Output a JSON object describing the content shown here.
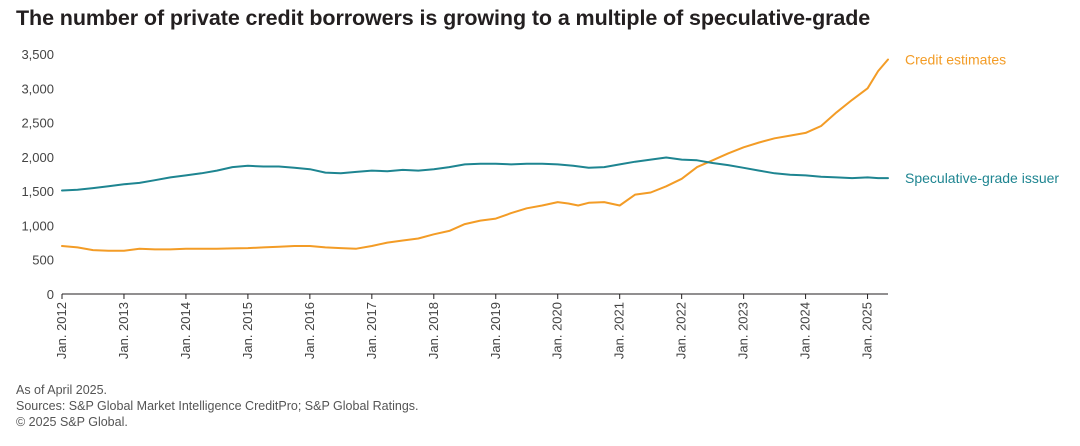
{
  "title": "The number of private credit borrowers is growing to a multiple of speculative-grade",
  "footer": {
    "note": "As of April 2025.",
    "sources": "Sources: S&P Global Market Intelligence CreditPro; S&P Global Ratings.",
    "copyright": "© 2025 S&P Global."
  },
  "colors": {
    "credit": "#f39c26",
    "spec": "#1e8591",
    "axis": "#231f20",
    "grid": "#cccccc"
  },
  "chart_data": {
    "type": "line",
    "ylim": [
      0,
      3500
    ],
    "yticks": [
      0,
      500,
      1000,
      1500,
      2000,
      2500,
      3000,
      3500
    ],
    "ytick_labels": [
      "0",
      "500",
      "1,000",
      "1,500",
      "2,000",
      "2,500",
      "3,000",
      "3,500"
    ],
    "xlim": [
      2012.0,
      2025.33
    ],
    "xticks": [
      2012,
      2013,
      2014,
      2015,
      2016,
      2017,
      2018,
      2019,
      2020,
      2021,
      2022,
      2023,
      2024,
      2025
    ],
    "xtick_labels": [
      "Jan. 2012",
      "Jan. 2013",
      "Jan. 2014",
      "Jan. 2015",
      "Jan. 2016",
      "Jan. 2017",
      "Jan. 2018",
      "Jan. 2019",
      "Jan. 2020",
      "Jan. 2021",
      "Jan. 2022",
      "Jan. 2023",
      "Jan. 2024",
      "Jan. 2025"
    ],
    "series": [
      {
        "name": "Credit estimates",
        "color": "#f39c26",
        "x": [
          2012.0,
          2012.25,
          2012.5,
          2012.75,
          2013.0,
          2013.25,
          2013.5,
          2013.75,
          2014.0,
          2014.25,
          2014.5,
          2014.75,
          2015.0,
          2015.25,
          2015.5,
          2015.75,
          2016.0,
          2016.25,
          2016.5,
          2016.75,
          2017.0,
          2017.25,
          2017.5,
          2017.75,
          2018.0,
          2018.25,
          2018.5,
          2018.75,
          2019.0,
          2019.25,
          2019.5,
          2019.75,
          2020.0,
          2020.17,
          2020.33,
          2020.5,
          2020.75,
          2021.0,
          2021.25,
          2021.5,
          2021.75,
          2022.0,
          2022.25,
          2022.5,
          2022.75,
          2023.0,
          2023.25,
          2023.5,
          2023.75,
          2024.0,
          2024.25,
          2024.5,
          2024.75,
          2025.0,
          2025.17,
          2025.33
        ],
        "y": [
          700,
          680,
          640,
          630,
          630,
          660,
          650,
          650,
          660,
          660,
          660,
          665,
          670,
          680,
          690,
          700,
          700,
          680,
          670,
          660,
          700,
          750,
          780,
          810,
          870,
          920,
          1020,
          1070,
          1100,
          1180,
          1250,
          1290,
          1340,
          1320,
          1290,
          1330,
          1340,
          1290,
          1450,
          1480,
          1570,
          1680,
          1850,
          1950,
          2050,
          2140,
          2210,
          2270,
          2310,
          2350,
          2450,
          2650,
          2830,
          3000,
          3250,
          3420
        ]
      },
      {
        "name": "Speculative-grade issuer",
        "color": "#1e8591",
        "x": [
          2012.0,
          2012.25,
          2012.5,
          2012.75,
          2013.0,
          2013.25,
          2013.5,
          2013.75,
          2014.0,
          2014.25,
          2014.5,
          2014.75,
          2015.0,
          2015.25,
          2015.5,
          2015.75,
          2016.0,
          2016.25,
          2016.5,
          2016.75,
          2017.0,
          2017.25,
          2017.5,
          2017.75,
          2018.0,
          2018.25,
          2018.5,
          2018.75,
          2019.0,
          2019.25,
          2019.5,
          2019.75,
          2020.0,
          2020.25,
          2020.5,
          2020.75,
          2021.0,
          2021.25,
          2021.5,
          2021.75,
          2022.0,
          2022.25,
          2022.5,
          2022.75,
          2023.0,
          2023.25,
          2023.5,
          2023.75,
          2024.0,
          2024.25,
          2024.5,
          2024.75,
          2025.0,
          2025.17,
          2025.33
        ],
        "y": [
          1510,
          1520,
          1545,
          1570,
          1600,
          1620,
          1660,
          1700,
          1730,
          1760,
          1800,
          1850,
          1870,
          1860,
          1860,
          1840,
          1820,
          1770,
          1760,
          1780,
          1800,
          1790,
          1810,
          1800,
          1820,
          1850,
          1890,
          1900,
          1900,
          1890,
          1900,
          1900,
          1890,
          1870,
          1840,
          1850,
          1890,
          1930,
          1960,
          1990,
          1960,
          1950,
          1910,
          1880,
          1840,
          1800,
          1760,
          1740,
          1730,
          1710,
          1700,
          1690,
          1700,
          1690,
          1690
        ]
      }
    ]
  }
}
